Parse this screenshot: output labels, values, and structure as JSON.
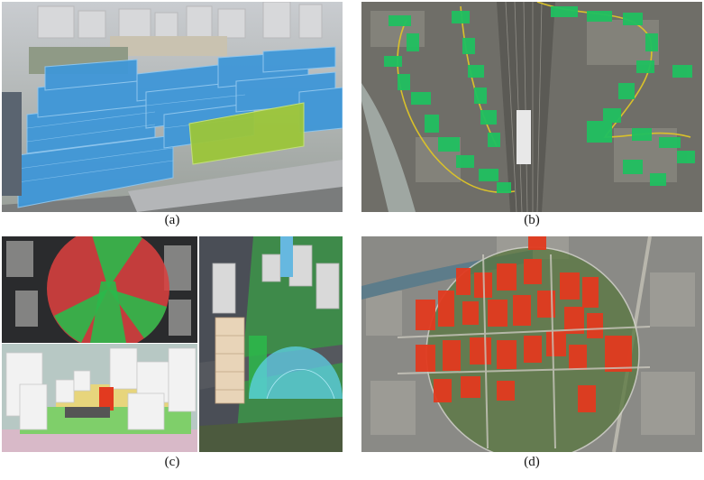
{
  "captions": {
    "a": "(a)",
    "b": "(b)",
    "c": "(c)",
    "d": "(d)"
  },
  "colors": {
    "building_blue": "#3f97d8",
    "building_green_highlight": "#9cc63a",
    "network_green": "#20c060",
    "route_yellow": "#d9c12a",
    "sector_red": "#d8403f",
    "sector_green": "#2bb84a",
    "dome_cyan": "#5fd0e8",
    "target_red": "#e23a1f",
    "aerial_gray": "#8a8a86"
  }
}
